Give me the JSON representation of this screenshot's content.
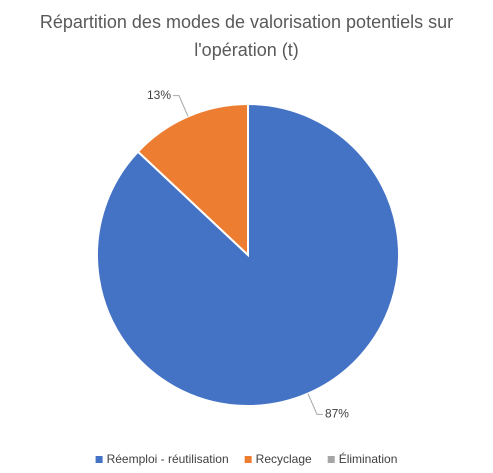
{
  "chart_data": {
    "type": "pie",
    "title": "Répartition des modes de valorisation potentiels sur l'opération (t)",
    "categories": [
      "Réemploi - réutilisation",
      "Recyclage",
      "Élimination"
    ],
    "values": [
      87,
      13,
      0
    ],
    "value_labels": [
      "87%",
      "13%",
      null
    ],
    "colors": [
      "#4472c4",
      "#ed7d31",
      "#a5a5a5"
    ],
    "legend": "bottom"
  }
}
